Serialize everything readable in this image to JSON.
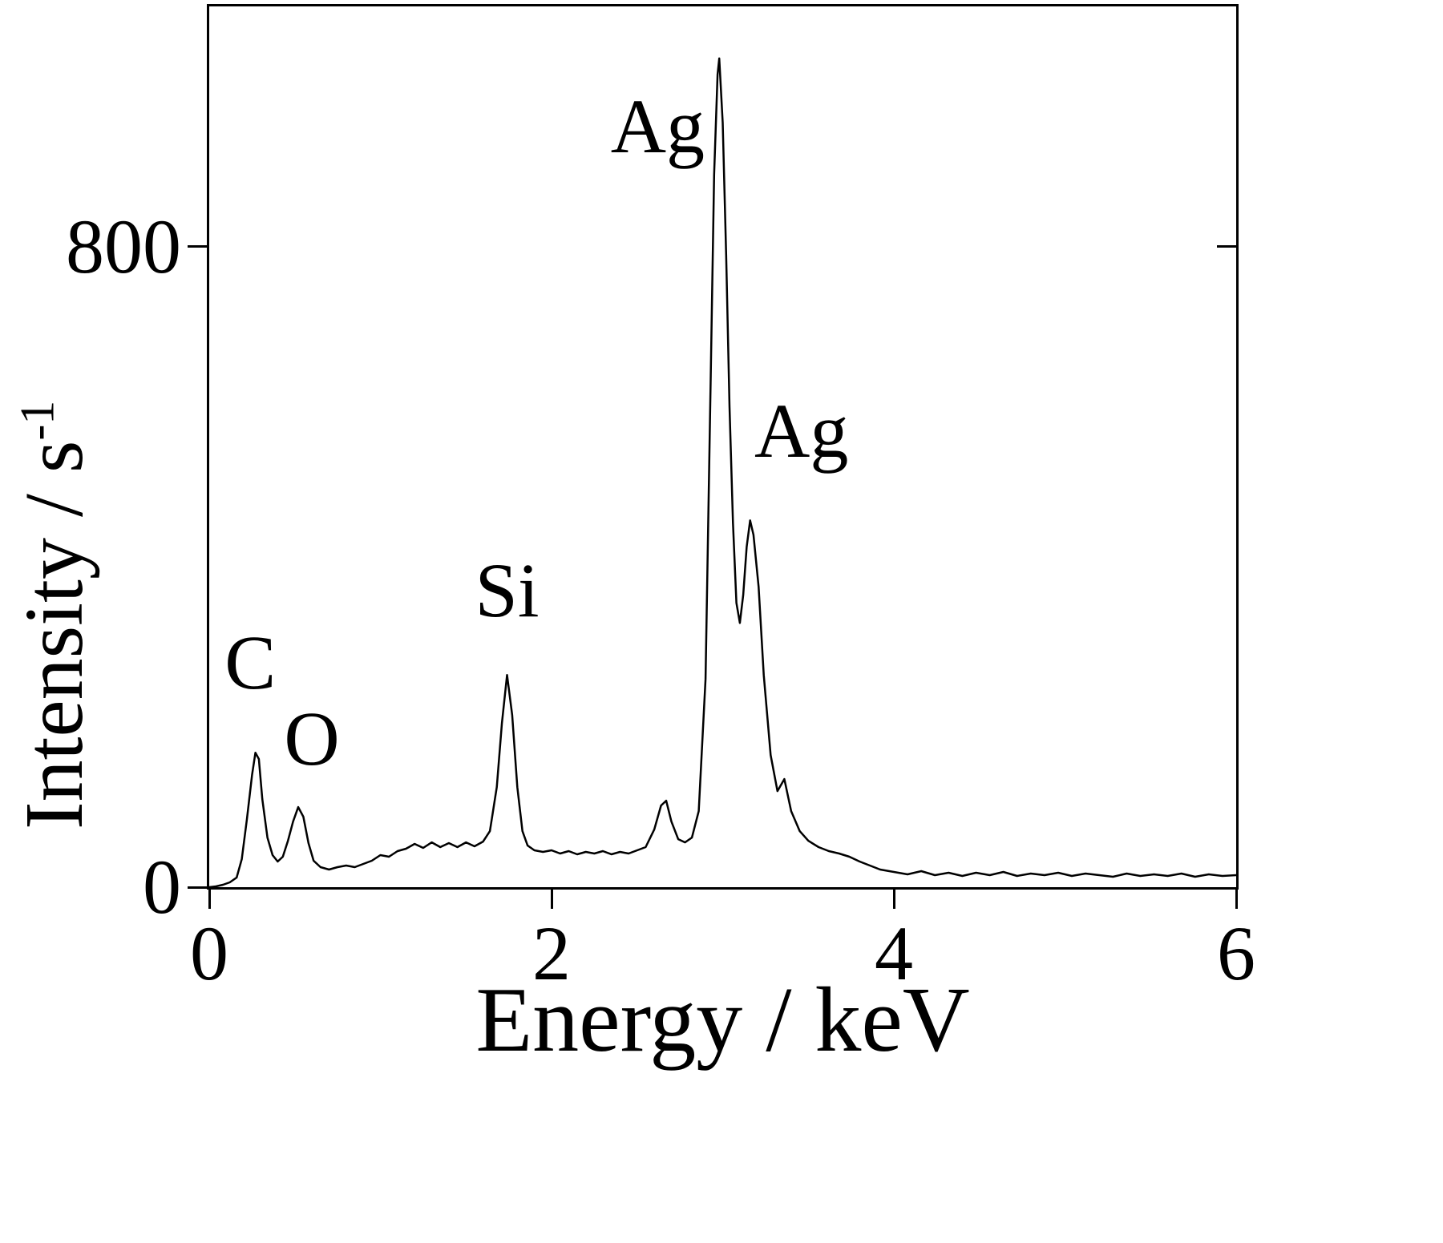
{
  "colors": {
    "background": "#ffffff",
    "trace": "#000000",
    "text": "#000000"
  },
  "chart_data": {
    "type": "line",
    "title": "",
    "xlabel": "Energy / keV",
    "ylabel": "Intensity / s",
    "ylabel_superscript": "-1",
    "xlim": [
      0,
      6
    ],
    "ylim": [
      0,
      1100
    ],
    "xticks": [
      0,
      2,
      4,
      6
    ],
    "xtick_labels": [
      "0",
      "2",
      "4",
      "6"
    ],
    "yticks": [
      0,
      800
    ],
    "ytick_labels": [
      "0",
      "800"
    ],
    "grid": false,
    "legend": "none",
    "annotations": [
      {
        "label": "C",
        "x": 0.24,
        "y": 280
      },
      {
        "label": "O",
        "x": 0.6,
        "y": 185
      },
      {
        "label": "Si",
        "x": 1.74,
        "y": 370
      },
      {
        "label": "Ag",
        "x": 2.62,
        "y": 950
      },
      {
        "label": "Ag",
        "x": 3.46,
        "y": 570
      }
    ],
    "peaks": [
      {
        "element": "C",
        "energy_keV": 0.27,
        "intensity": 170
      },
      {
        "element": "O",
        "energy_keV": 0.52,
        "intensity": 100
      },
      {
        "element": "Si",
        "energy_keV": 1.74,
        "intensity": 265
      },
      {
        "element": "Ag",
        "energy_keV": 2.98,
        "intensity": 1035
      },
      {
        "element": "Ag",
        "energy_keV": 3.16,
        "intensity": 460
      }
    ],
    "points": [
      [
        0.0,
        0
      ],
      [
        0.04,
        1
      ],
      [
        0.08,
        3
      ],
      [
        0.12,
        6
      ],
      [
        0.16,
        12
      ],
      [
        0.19,
        35
      ],
      [
        0.22,
        85
      ],
      [
        0.25,
        140
      ],
      [
        0.27,
        168
      ],
      [
        0.29,
        160
      ],
      [
        0.31,
        110
      ],
      [
        0.34,
        62
      ],
      [
        0.37,
        40
      ],
      [
        0.4,
        32
      ],
      [
        0.43,
        38
      ],
      [
        0.46,
        58
      ],
      [
        0.49,
        82
      ],
      [
        0.52,
        100
      ],
      [
        0.55,
        88
      ],
      [
        0.58,
        55
      ],
      [
        0.61,
        33
      ],
      [
        0.65,
        25
      ],
      [
        0.7,
        22
      ],
      [
        0.75,
        25
      ],
      [
        0.8,
        27
      ],
      [
        0.85,
        25
      ],
      [
        0.9,
        29
      ],
      [
        0.95,
        33
      ],
      [
        1.0,
        40
      ],
      [
        1.05,
        38
      ],
      [
        1.1,
        45
      ],
      [
        1.15,
        48
      ],
      [
        1.2,
        54
      ],
      [
        1.25,
        49
      ],
      [
        1.3,
        56
      ],
      [
        1.35,
        50
      ],
      [
        1.4,
        55
      ],
      [
        1.45,
        50
      ],
      [
        1.5,
        56
      ],
      [
        1.55,
        51
      ],
      [
        1.6,
        57
      ],
      [
        1.64,
        70
      ],
      [
        1.68,
        125
      ],
      [
        1.71,
        205
      ],
      [
        1.74,
        265
      ],
      [
        1.77,
        215
      ],
      [
        1.8,
        125
      ],
      [
        1.83,
        70
      ],
      [
        1.86,
        52
      ],
      [
        1.9,
        46
      ],
      [
        1.95,
        44
      ],
      [
        2.0,
        46
      ],
      [
        2.05,
        42
      ],
      [
        2.1,
        45
      ],
      [
        2.15,
        41
      ],
      [
        2.2,
        44
      ],
      [
        2.25,
        42
      ],
      [
        2.3,
        45
      ],
      [
        2.35,
        41
      ],
      [
        2.4,
        44
      ],
      [
        2.45,
        42
      ],
      [
        2.5,
        46
      ],
      [
        2.55,
        50
      ],
      [
        2.6,
        72
      ],
      [
        2.64,
        102
      ],
      [
        2.67,
        108
      ],
      [
        2.7,
        82
      ],
      [
        2.74,
        60
      ],
      [
        2.78,
        56
      ],
      [
        2.82,
        62
      ],
      [
        2.86,
        95
      ],
      [
        2.9,
        260
      ],
      [
        2.93,
        640
      ],
      [
        2.95,
        890
      ],
      [
        2.97,
        1015
      ],
      [
        2.98,
        1035
      ],
      [
        3.0,
        955
      ],
      [
        3.02,
        790
      ],
      [
        3.04,
        600
      ],
      [
        3.06,
        455
      ],
      [
        3.08,
        355
      ],
      [
        3.1,
        330
      ],
      [
        3.12,
        365
      ],
      [
        3.14,
        425
      ],
      [
        3.16,
        458
      ],
      [
        3.18,
        440
      ],
      [
        3.21,
        375
      ],
      [
        3.24,
        265
      ],
      [
        3.28,
        165
      ],
      [
        3.32,
        120
      ],
      [
        3.36,
        135
      ],
      [
        3.4,
        95
      ],
      [
        3.45,
        70
      ],
      [
        3.5,
        58
      ],
      [
        3.56,
        50
      ],
      [
        3.62,
        45
      ],
      [
        3.68,
        42
      ],
      [
        3.74,
        38
      ],
      [
        3.8,
        32
      ],
      [
        3.86,
        27
      ],
      [
        3.92,
        22
      ],
      [
        4.0,
        19
      ],
      [
        4.08,
        16
      ],
      [
        4.16,
        20
      ],
      [
        4.24,
        15
      ],
      [
        4.32,
        18
      ],
      [
        4.4,
        14
      ],
      [
        4.48,
        18
      ],
      [
        4.56,
        15
      ],
      [
        4.64,
        19
      ],
      [
        4.72,
        14
      ],
      [
        4.8,
        17
      ],
      [
        4.88,
        15
      ],
      [
        4.96,
        18
      ],
      [
        5.04,
        14
      ],
      [
        5.12,
        17
      ],
      [
        5.2,
        15
      ],
      [
        5.28,
        13
      ],
      [
        5.36,
        17
      ],
      [
        5.44,
        14
      ],
      [
        5.52,
        16
      ],
      [
        5.6,
        14
      ],
      [
        5.68,
        17
      ],
      [
        5.76,
        13
      ],
      [
        5.84,
        16
      ],
      [
        5.92,
        14
      ],
      [
        6.0,
        15
      ]
    ]
  }
}
